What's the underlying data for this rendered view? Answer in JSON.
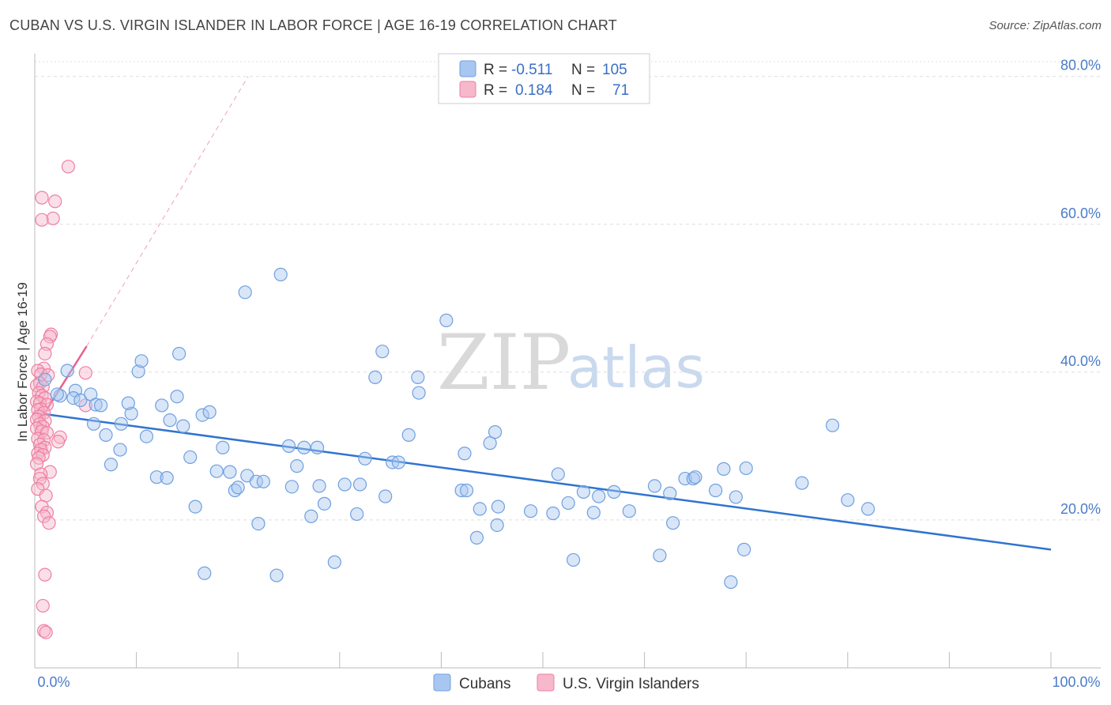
{
  "header": {
    "title": "CUBAN VS U.S. VIRGIN ISLANDER IN LABOR FORCE | AGE 16-19 CORRELATION CHART",
    "source": "Source: ZipAtlas.com"
  },
  "watermark": {
    "zip": "ZIP",
    "atlas": "atlas"
  },
  "colors": {
    "cubans_fill": "#a8c7f0",
    "cubans_stroke": "#6f9fe0",
    "cubans_line": "#2f74d0",
    "usvi_fill": "#f7b8cc",
    "usvi_stroke": "#ee7fa2",
    "usvi_line": "#e8608c",
    "grid": "#dddddd",
    "axis_label": "#4a7cc9"
  },
  "legend_top": {
    "rows": [
      {
        "r_label": "R =",
        "r_value": "-0.511",
        "n_label": "N =",
        "n_value": "105"
      },
      {
        "r_label": "R =",
        "r_value": "0.184",
        "n_label": "N =",
        "n_value": "71"
      }
    ]
  },
  "legend_bottom": {
    "items": [
      "Cubans",
      "U.S. Virgin Islanders"
    ]
  },
  "chart_data": {
    "type": "scatter",
    "title": "CUBAN VS U.S. VIRGIN ISLANDER IN LABOR FORCE | AGE 16-19 CORRELATION CHART",
    "xlabel": "",
    "ylabel": "In Labor Force | Age 16-19",
    "xlim": [
      0,
      100
    ],
    "ylim": [
      0,
      82
    ],
    "x_tick_labels": [
      "0.0%",
      "100.0%"
    ],
    "y_ticks": [
      20,
      40,
      60,
      80
    ],
    "y_tick_labels": [
      "20.0%",
      "40.0%",
      "60.0%",
      "80.0%"
    ],
    "grid": true,
    "legend_position": "bottom",
    "series": [
      {
        "name": "Cubans",
        "r": -0.511,
        "n": 105,
        "trend": {
          "x": [
            0,
            100
          ],
          "y": [
            34.5,
            16.0
          ]
        },
        "points": [
          [
            1.0,
            39.0
          ],
          [
            2.5,
            36.8
          ],
          [
            3.2,
            40.2
          ],
          [
            4.0,
            37.5
          ],
          [
            3.8,
            36.5
          ],
          [
            2.2,
            37.0
          ],
          [
            4.5,
            36.2
          ],
          [
            5.5,
            37.0
          ],
          [
            6.0,
            35.6
          ],
          [
            5.8,
            33.0
          ],
          [
            6.5,
            35.5
          ],
          [
            7.0,
            31.5
          ],
          [
            7.5,
            27.5
          ],
          [
            8.5,
            33.0
          ],
          [
            8.4,
            29.5
          ],
          [
            9.5,
            34.4
          ],
          [
            9.2,
            35.8
          ],
          [
            10.2,
            40.1
          ],
          [
            10.5,
            41.5
          ],
          [
            11.0,
            31.3
          ],
          [
            12.0,
            25.8
          ],
          [
            12.5,
            35.5
          ],
          [
            13.0,
            25.7
          ],
          [
            13.3,
            33.5
          ],
          [
            14.0,
            36.7
          ],
          [
            14.2,
            42.5
          ],
          [
            14.6,
            32.7
          ],
          [
            15.3,
            28.5
          ],
          [
            15.8,
            21.8
          ],
          [
            16.5,
            34.2
          ],
          [
            17.2,
            34.6
          ],
          [
            16.7,
            12.8
          ],
          [
            17.9,
            26.6
          ],
          [
            18.5,
            29.8
          ],
          [
            19.2,
            26.5
          ],
          [
            19.7,
            24.0
          ],
          [
            20.0,
            24.4
          ],
          [
            20.7,
            50.8
          ],
          [
            20.9,
            26.0
          ],
          [
            21.8,
            25.2
          ],
          [
            22.0,
            19.5
          ],
          [
            22.5,
            25.2
          ],
          [
            23.8,
            12.5
          ],
          [
            24.2,
            53.2
          ],
          [
            25.0,
            30.0
          ],
          [
            25.3,
            24.5
          ],
          [
            25.8,
            27.3
          ],
          [
            26.5,
            29.8
          ],
          [
            27.8,
            29.8
          ],
          [
            27.2,
            20.5
          ],
          [
            28.0,
            24.6
          ],
          [
            28.5,
            22.2
          ],
          [
            29.5,
            14.3
          ],
          [
            30.5,
            24.8
          ],
          [
            31.7,
            20.8
          ],
          [
            32.0,
            24.8
          ],
          [
            32.5,
            28.3
          ],
          [
            33.5,
            39.3
          ],
          [
            34.2,
            42.8
          ],
          [
            34.5,
            23.2
          ],
          [
            35.2,
            27.8
          ],
          [
            35.8,
            27.8
          ],
          [
            36.8,
            31.5
          ],
          [
            37.8,
            37.2
          ],
          [
            37.7,
            39.3
          ],
          [
            40.5,
            47.0
          ],
          [
            42.0,
            24.0
          ],
          [
            42.5,
            24.0
          ],
          [
            42.3,
            29.0
          ],
          [
            43.5,
            17.6
          ],
          [
            43.8,
            21.5
          ],
          [
            44.8,
            30.4
          ],
          [
            45.3,
            31.9
          ],
          [
            45.5,
            19.3
          ],
          [
            45.6,
            21.8
          ],
          [
            48.8,
            21.2
          ],
          [
            51.0,
            20.9
          ],
          [
            51.5,
            26.2
          ],
          [
            52.5,
            22.3
          ],
          [
            53.0,
            14.6
          ],
          [
            54.0,
            23.8
          ],
          [
            55.0,
            21.0
          ],
          [
            55.5,
            23.2
          ],
          [
            57.0,
            23.8
          ],
          [
            58.5,
            21.2
          ],
          [
            61.0,
            24.6
          ],
          [
            61.5,
            15.2
          ],
          [
            62.5,
            23.6
          ],
          [
            62.8,
            19.6
          ],
          [
            64.0,
            25.6
          ],
          [
            64.8,
            25.6
          ],
          [
            65.0,
            25.8
          ],
          [
            67.0,
            24.0
          ],
          [
            67.8,
            26.9
          ],
          [
            69.0,
            23.1
          ],
          [
            69.8,
            16.0
          ],
          [
            70.0,
            27.0
          ],
          [
            68.5,
            11.6
          ],
          [
            75.5,
            25.0
          ],
          [
            78.5,
            32.8
          ],
          [
            80.0,
            22.7
          ],
          [
            82.0,
            21.5
          ]
        ]
      },
      {
        "name": "U.S. Virgin Islanders",
        "r": 0.184,
        "n": 71,
        "trend": {
          "x": [
            0.3,
            5.1
          ],
          "y": [
            33.0,
            43.5
          ],
          "dash_to": {
            "x": 21.0,
            "y": 80.0
          }
        },
        "points": [
          [
            3.3,
            67.8
          ],
          [
            0.7,
            63.6
          ],
          [
            2.0,
            63.1
          ],
          [
            1.8,
            60.8
          ],
          [
            0.7,
            60.6
          ],
          [
            1.6,
            45.1
          ],
          [
            1.5,
            44.8
          ],
          [
            1.2,
            43.8
          ],
          [
            1.0,
            42.5
          ],
          [
            0.9,
            40.5
          ],
          [
            0.3,
            40.2
          ],
          [
            0.6,
            39.7
          ],
          [
            1.3,
            39.6
          ],
          [
            5.0,
            39.9
          ],
          [
            0.5,
            38.5
          ],
          [
            0.2,
            38.2
          ],
          [
            0.8,
            38.0
          ],
          [
            0.4,
            37.2
          ],
          [
            0.7,
            36.8
          ],
          [
            1.0,
            36.5
          ],
          [
            0.2,
            36.0
          ],
          [
            0.5,
            35.8
          ],
          [
            1.2,
            35.6
          ],
          [
            5.0,
            35.5
          ],
          [
            0.6,
            35.0
          ],
          [
            0.3,
            34.9
          ],
          [
            0.9,
            34.5
          ],
          [
            0.4,
            34.0
          ],
          [
            0.2,
            33.6
          ],
          [
            1.0,
            33.4
          ],
          [
            0.5,
            33.0
          ],
          [
            0.8,
            32.6
          ],
          [
            0.2,
            32.4
          ],
          [
            0.7,
            32.0
          ],
          [
            1.2,
            31.8
          ],
          [
            2.5,
            31.2
          ],
          [
            0.3,
            31.0
          ],
          [
            0.9,
            30.8
          ],
          [
            2.3,
            30.6
          ],
          [
            0.5,
            30.2
          ],
          [
            1.0,
            29.8
          ],
          [
            0.6,
            29.5
          ],
          [
            0.3,
            29.0
          ],
          [
            0.8,
            28.8
          ],
          [
            0.4,
            28.4
          ],
          [
            0.2,
            27.6
          ],
          [
            1.5,
            26.5
          ],
          [
            0.6,
            26.2
          ],
          [
            0.5,
            25.6
          ],
          [
            0.8,
            24.9
          ],
          [
            0.3,
            24.2
          ],
          [
            1.1,
            23.3
          ],
          [
            0.7,
            21.8
          ],
          [
            1.2,
            21.0
          ],
          [
            0.9,
            20.5
          ],
          [
            1.4,
            19.6
          ],
          [
            1.0,
            12.6
          ],
          [
            0.8,
            8.4
          ],
          [
            0.9,
            5.0
          ],
          [
            1.1,
            4.8
          ]
        ]
      }
    ]
  }
}
